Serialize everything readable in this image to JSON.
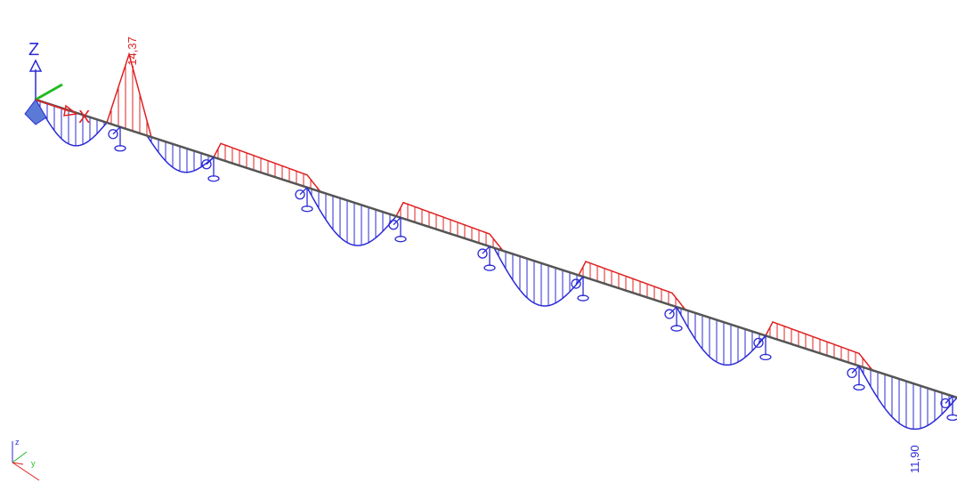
{
  "diagram": {
    "labels": {
      "max_negative": "-14,37",
      "max_positive": "11,90"
    },
    "axes_gizmo": {
      "z_label": "Z",
      "x_label": "X"
    },
    "mini_triad": {
      "z_label": "z",
      "y_label": "y"
    },
    "colors": {
      "negative": "#e02020",
      "positive": "#2b2bd6",
      "beam": "#555555",
      "support": "#2b2bd6",
      "x_axis": "#e02020",
      "y_axis": "#22bb22",
      "z_axis": "#2b2bd6"
    }
  }
}
